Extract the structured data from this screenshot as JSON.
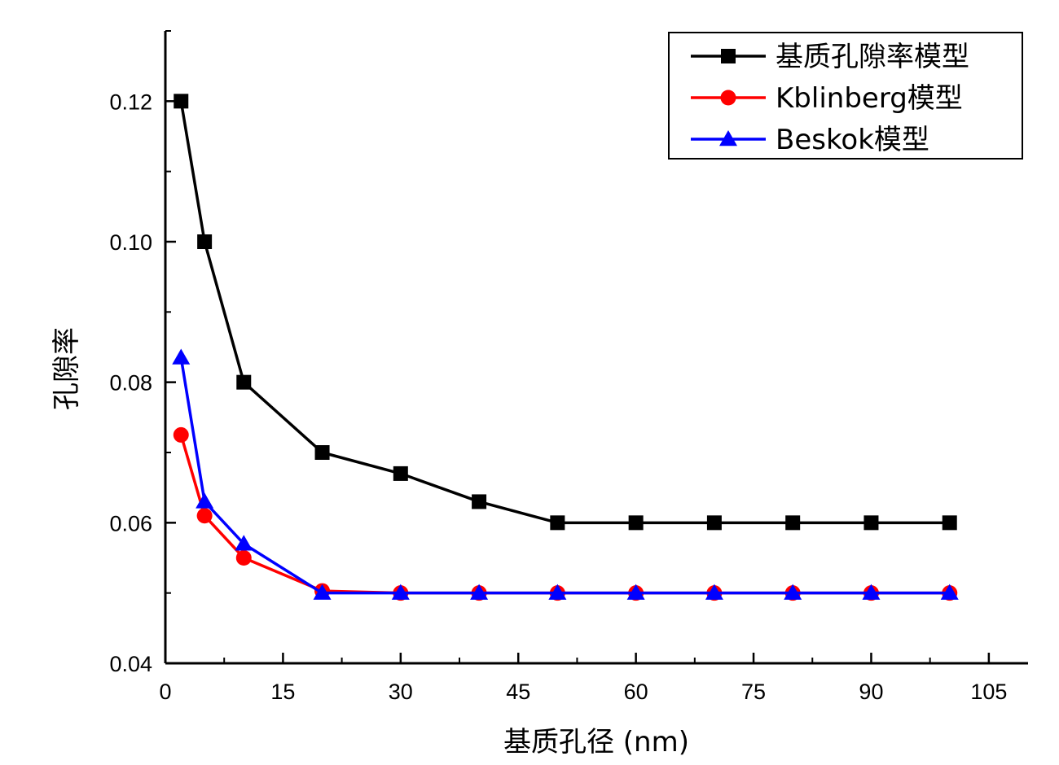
{
  "chart_data": {
    "type": "line",
    "xlabel": "基质孔径 (nm)",
    "ylabel": "孔隙率",
    "xlim": [
      0,
      110
    ],
    "ylim": [
      0.04,
      0.13
    ],
    "xticks": [
      0,
      15,
      30,
      45,
      60,
      75,
      90,
      105
    ],
    "xtick_labels": [
      "0",
      "15",
      "30",
      "45",
      "60",
      "75",
      "90",
      "105"
    ],
    "yticks": [
      0.04,
      0.06,
      0.08,
      0.1,
      0.12
    ],
    "ytick_labels": [
      "0.04",
      "0.06",
      "0.08",
      "0.10",
      "0.12"
    ],
    "grid": false,
    "legend_position": "top-right",
    "x": [
      2,
      5,
      10,
      20,
      30,
      40,
      50,
      60,
      70,
      80,
      90,
      100
    ],
    "series": [
      {
        "name": "基质孔隙率模型",
        "color": "#000000",
        "marker": "square",
        "values": [
          0.12,
          0.1,
          0.08,
          0.07,
          0.067,
          0.063,
          0.06,
          0.06,
          0.06,
          0.06,
          0.06,
          0.06
        ]
      },
      {
        "name": "Kblinberg模型",
        "color": "#ff0000",
        "marker": "circle",
        "values": [
          0.0725,
          0.061,
          0.055,
          0.0503,
          0.05,
          0.05,
          0.05,
          0.05,
          0.05,
          0.05,
          0.05,
          0.05
        ]
      },
      {
        "name": "Beskok模型",
        "color": "#0000ff",
        "marker": "triangle",
        "values": [
          0.0835,
          0.063,
          0.057,
          0.05,
          0.05,
          0.05,
          0.05,
          0.05,
          0.05,
          0.05,
          0.05,
          0.05
        ]
      }
    ]
  }
}
